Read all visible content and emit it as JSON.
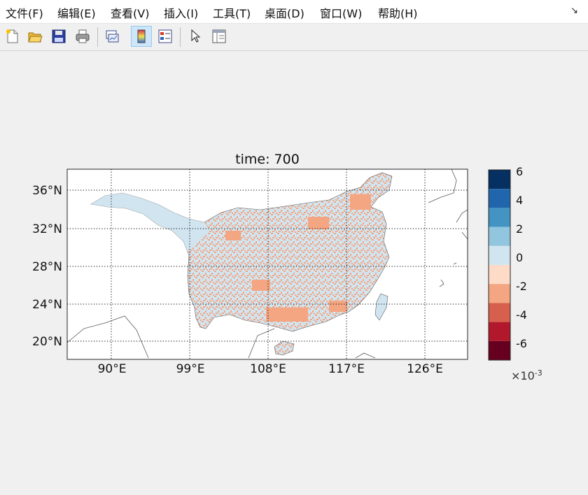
{
  "menu": {
    "items": [
      {
        "label": "文件(F)"
      },
      {
        "label": "编辑(E)"
      },
      {
        "label": "查看(V)"
      },
      {
        "label": "插入(I)"
      },
      {
        "label": "工具(T)"
      },
      {
        "label": "桌面(D)"
      },
      {
        "label": "窗口(W)"
      },
      {
        "label": "帮助(H)"
      }
    ],
    "dock_icon": "dock-arrow-icon"
  },
  "toolbar": {
    "buttons": [
      {
        "icon": "new-file-icon"
      },
      {
        "icon": "open-folder-icon"
      },
      {
        "icon": "save-icon"
      },
      {
        "icon": "print-icon"
      },
      {
        "icon": "link-plot-icon"
      },
      {
        "icon": "insert-colorbar-icon",
        "active": true
      },
      {
        "icon": "insert-legend-icon"
      },
      {
        "icon": "pointer-icon"
      },
      {
        "icon": "property-inspector-icon"
      }
    ]
  },
  "map": {
    "title": "time: 700",
    "lat_labels": [
      "36°N",
      "32°N",
      "28°N",
      "24°N",
      "20°N"
    ],
    "lon_labels": [
      "90°E",
      "99°E",
      "108°E",
      "117°E",
      "126°E"
    ],
    "land_color": "#d1e5f0",
    "anomaly_color": "#f4a582",
    "coast_color": "#595959"
  },
  "colorbar": {
    "tick_labels": [
      "6",
      "4",
      "2",
      "0",
      "-2",
      "-4",
      "-6"
    ],
    "multiplier": "10",
    "exponent": "-3",
    "colors": [
      "#053061",
      "#2166ac",
      "#4393c3",
      "#92c5de",
      "#d1e5f0",
      "#fddbc7",
      "#f4a582",
      "#d6604d",
      "#b2182b",
      "#67001f"
    ]
  }
}
